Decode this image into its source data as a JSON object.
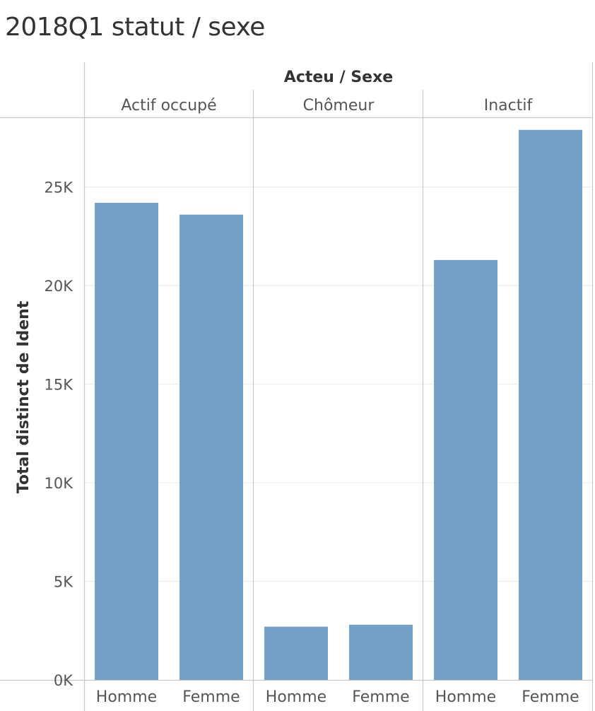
{
  "title": "2018Q1 statut / sexe",
  "colors": {
    "bar": "#75a1c7",
    "text": "#555555",
    "axis_title": "#333333",
    "grid": "#ececec",
    "divider": "#c8c8c8"
  },
  "chart_data": {
    "type": "bar",
    "column_header": "Acteu / Sexe",
    "ylabel": "Total distinct de Ident",
    "ylim": [
      0,
      28500
    ],
    "yticks": [
      0,
      5000,
      10000,
      15000,
      20000,
      25000
    ],
    "ytick_labels": [
      "0K",
      "5K",
      "10K",
      "15K",
      "20K",
      "25K"
    ],
    "grid": true,
    "groups": [
      {
        "name": "Actif occupé",
        "bars": [
          {
            "label": "Homme",
            "value": 24200
          },
          {
            "label": "Femme",
            "value": 23600
          }
        ]
      },
      {
        "name": "Chômeur",
        "bars": [
          {
            "label": "Homme",
            "value": 2700
          },
          {
            "label": "Femme",
            "value": 2800
          }
        ]
      },
      {
        "name": "Inactif",
        "bars": [
          {
            "label": "Homme",
            "value": 21300
          },
          {
            "label": "Femme",
            "value": 27900
          }
        ]
      }
    ]
  }
}
